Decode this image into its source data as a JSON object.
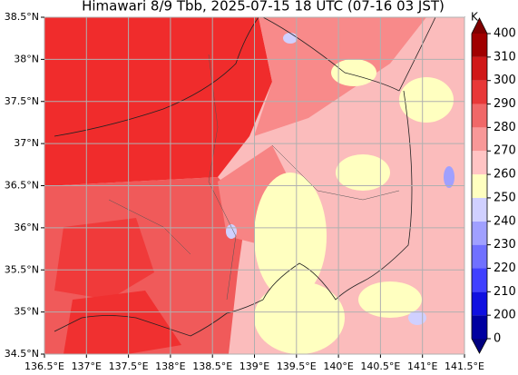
{
  "title": "Himawari 8/9 Tbb, 2025-07-15 18 UTC (07-16 03 JST)",
  "x_tick_labels": [
    "136.5°E",
    "137°E",
    "137.5°E",
    "138°E",
    "138.5°E",
    "139°E",
    "139.5°E",
    "140°E",
    "140.5°E",
    "141°E",
    "141.5°E"
  ],
  "y_tick_labels": [
    "34.5°N",
    "35°N",
    "35.5°N",
    "36°N",
    "36.5°N",
    "37°N",
    "37.5°N",
    "38°N",
    "38.5°N"
  ],
  "colorbar": {
    "label": "K",
    "ticks": [
      0,
      200,
      210,
      220,
      230,
      240,
      250,
      260,
      270,
      280,
      290,
      300,
      310,
      400
    ],
    "colors": [
      "#0000a0",
      "#1010e0",
      "#4040ff",
      "#7070ff",
      "#a0a0ff",
      "#d0d0ff",
      "#ffffc0",
      "#ffc4c4",
      "#f89898",
      "#f06868",
      "#e83838",
      "#d01818",
      "#a00000"
    ],
    "under_color": "#000080",
    "over_color": "#800000"
  }
}
